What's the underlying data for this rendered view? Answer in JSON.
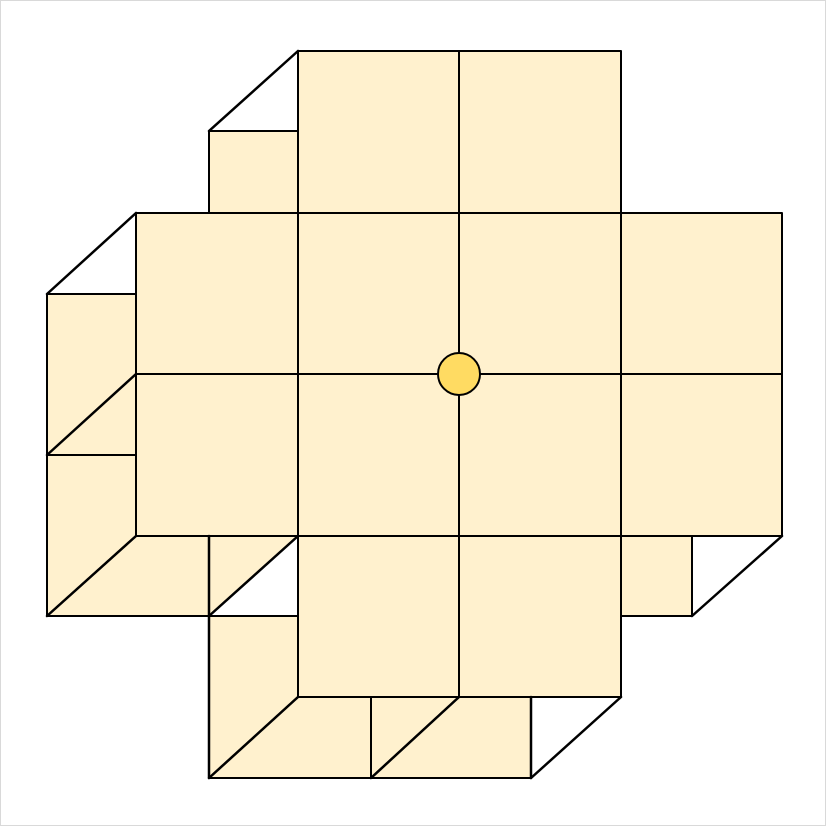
{
  "diagram": {
    "description_colors": {
      "face_fill": "#FFF1CE",
      "stroke": "#000000",
      "marker_fill": "#FFDB62",
      "frame_stroke": "#D9D9D9",
      "background": "#FFFFFF"
    },
    "grid": {
      "columns": 4,
      "rows": 4
    },
    "marker": {
      "shape": "circle"
    }
  }
}
